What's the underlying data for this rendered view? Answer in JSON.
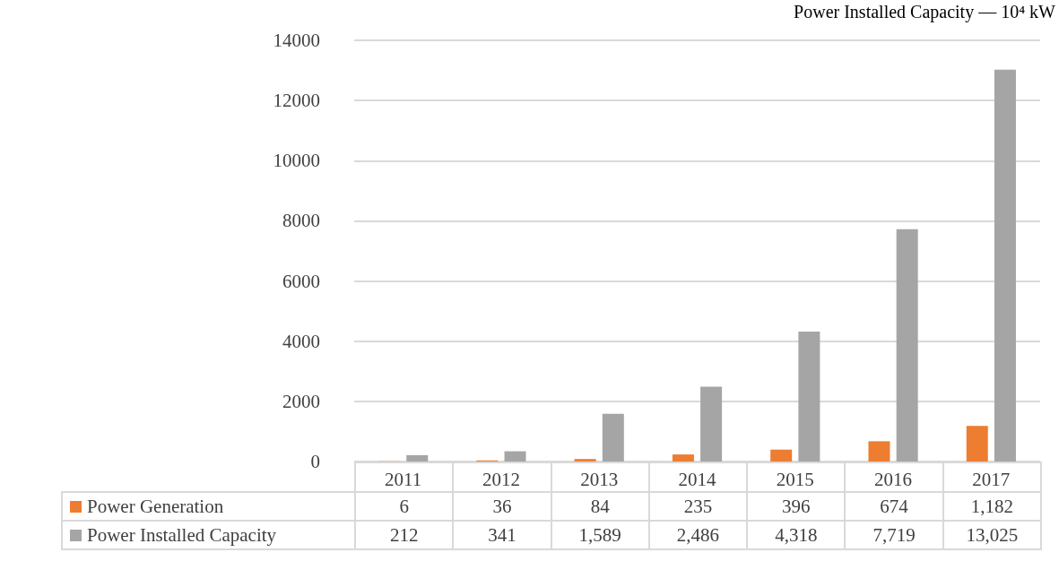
{
  "chart_data": {
    "type": "bar",
    "annotations": [
      "Power Installed Capacity — 10⁴ kW"
    ],
    "categories": [
      "2011",
      "2012",
      "2013",
      "2014",
      "2015",
      "2016",
      "2017"
    ],
    "series": [
      {
        "name": "Power Generation",
        "color": "#ed7d31",
        "values": [
          6,
          36,
          84,
          235,
          396,
          674,
          1182
        ],
        "value_labels": [
          "6",
          "36",
          "84",
          "235",
          "396",
          "674",
          "1,182"
        ]
      },
      {
        "name": "Power Installed Capacity",
        "color": "#a5a5a5",
        "values": [
          212,
          341,
          1589,
          2486,
          4318,
          7719,
          13025
        ],
        "value_labels": [
          "212",
          "341",
          "1,589",
          "2,486",
          "4,318",
          "7,719",
          "13,025"
        ]
      }
    ],
    "ylim": [
      0,
      14000
    ],
    "yticks": [
      0,
      2000,
      4000,
      6000,
      8000,
      10000,
      12000,
      14000
    ],
    "grid": "y",
    "legend": "bottom"
  }
}
